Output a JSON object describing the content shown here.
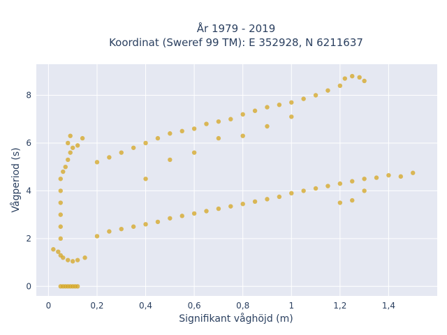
{
  "chart_data": {
    "type": "scatter",
    "title_line1": "År 1979 - 2019",
    "title_line2": "Koordinat (Sweref 99 TM): E 352928, N 6211637",
    "xlabel": "Signifikant våghöjd (m)",
    "ylabel": "Vågperiod (s)",
    "xlim": [
      -0.05,
      1.6
    ],
    "ylim": [
      -0.4,
      9.3
    ],
    "xticks": [
      0,
      0.2,
      0.4,
      0.6,
      0.8,
      1,
      1.2,
      1.4
    ],
    "xtick_labels": [
      "0",
      "0,2",
      "0,4",
      "0,6",
      "0,8",
      "1",
      "1,2",
      "1,4"
    ],
    "yticks": [
      0,
      2,
      4,
      6,
      8
    ],
    "ytick_labels": [
      "0",
      "2",
      "4",
      "6",
      "8"
    ],
    "grid": true,
    "legend": "none",
    "marker_color": "#D4A520",
    "background_color": "#E5E8F2",
    "grid_color": "#ffffff",
    "series": [
      {
        "points": [
          [
            0.05,
            0
          ],
          [
            0.06,
            0
          ],
          [
            0.07,
            0
          ],
          [
            0.08,
            0
          ],
          [
            0.09,
            0
          ],
          [
            0.1,
            0
          ],
          [
            0.11,
            0
          ],
          [
            0.12,
            0
          ],
          [
            0.02,
            1.55
          ],
          [
            0.04,
            1.45
          ],
          [
            0.05,
            1.3
          ],
          [
            0.06,
            1.2
          ],
          [
            0.08,
            1.1
          ],
          [
            0.1,
            1.05
          ],
          [
            0.12,
            1.1
          ],
          [
            0.15,
            1.2
          ],
          [
            0.05,
            2.0
          ],
          [
            0.05,
            2.5
          ],
          [
            0.05,
            3.0
          ],
          [
            0.05,
            3.5
          ],
          [
            0.05,
            4.0
          ],
          [
            0.05,
            4.5
          ],
          [
            0.06,
            4.8
          ],
          [
            0.07,
            5.0
          ],
          [
            0.08,
            5.3
          ],
          [
            0.09,
            5.6
          ],
          [
            0.1,
            5.8
          ],
          [
            0.08,
            6.0
          ],
          [
            0.09,
            6.3
          ],
          [
            0.12,
            5.9
          ],
          [
            0.14,
            6.2
          ],
          [
            0.2,
            2.1
          ],
          [
            0.25,
            2.3
          ],
          [
            0.3,
            2.4
          ],
          [
            0.35,
            2.5
          ],
          [
            0.4,
            2.6
          ],
          [
            0.45,
            2.7
          ],
          [
            0.5,
            2.85
          ],
          [
            0.55,
            2.95
          ],
          [
            0.6,
            3.05
          ],
          [
            0.65,
            3.15
          ],
          [
            0.7,
            3.25
          ],
          [
            0.75,
            3.35
          ],
          [
            0.8,
            3.45
          ],
          [
            0.85,
            3.55
          ],
          [
            0.9,
            3.65
          ],
          [
            0.95,
            3.75
          ],
          [
            1.0,
            3.9
          ],
          [
            1.05,
            4.0
          ],
          [
            1.1,
            4.1
          ],
          [
            1.15,
            4.2
          ],
          [
            1.2,
            4.3
          ],
          [
            1.25,
            4.4
          ],
          [
            1.3,
            4.5
          ],
          [
            1.35,
            4.55
          ],
          [
            1.4,
            4.65
          ],
          [
            1.45,
            4.6
          ],
          [
            1.5,
            4.75
          ],
          [
            1.3,
            4.0
          ],
          [
            1.25,
            3.6
          ],
          [
            1.2,
            3.5
          ],
          [
            0.2,
            5.2
          ],
          [
            0.25,
            5.4
          ],
          [
            0.3,
            5.6
          ],
          [
            0.35,
            5.8
          ],
          [
            0.4,
            6.0
          ],
          [
            0.45,
            6.2
          ],
          [
            0.5,
            6.4
          ],
          [
            0.55,
            6.5
          ],
          [
            0.6,
            6.6
          ],
          [
            0.65,
            6.8
          ],
          [
            0.7,
            6.9
          ],
          [
            0.75,
            7.0
          ],
          [
            0.8,
            7.2
          ],
          [
            0.85,
            7.35
          ],
          [
            0.9,
            7.5
          ],
          [
            0.95,
            7.6
          ],
          [
            1.0,
            7.7
          ],
          [
            1.05,
            7.85
          ],
          [
            1.1,
            8.0
          ],
          [
            1.15,
            8.2
          ],
          [
            1.2,
            8.4
          ],
          [
            1.22,
            8.7
          ],
          [
            1.25,
            8.8
          ],
          [
            1.28,
            8.75
          ],
          [
            1.3,
            8.6
          ],
          [
            1.0,
            7.1
          ],
          [
            0.9,
            6.7
          ],
          [
            0.8,
            6.3
          ],
          [
            0.7,
            6.2
          ],
          [
            0.6,
            5.6
          ],
          [
            0.5,
            5.3
          ],
          [
            0.4,
            4.5
          ]
        ]
      }
    ]
  }
}
